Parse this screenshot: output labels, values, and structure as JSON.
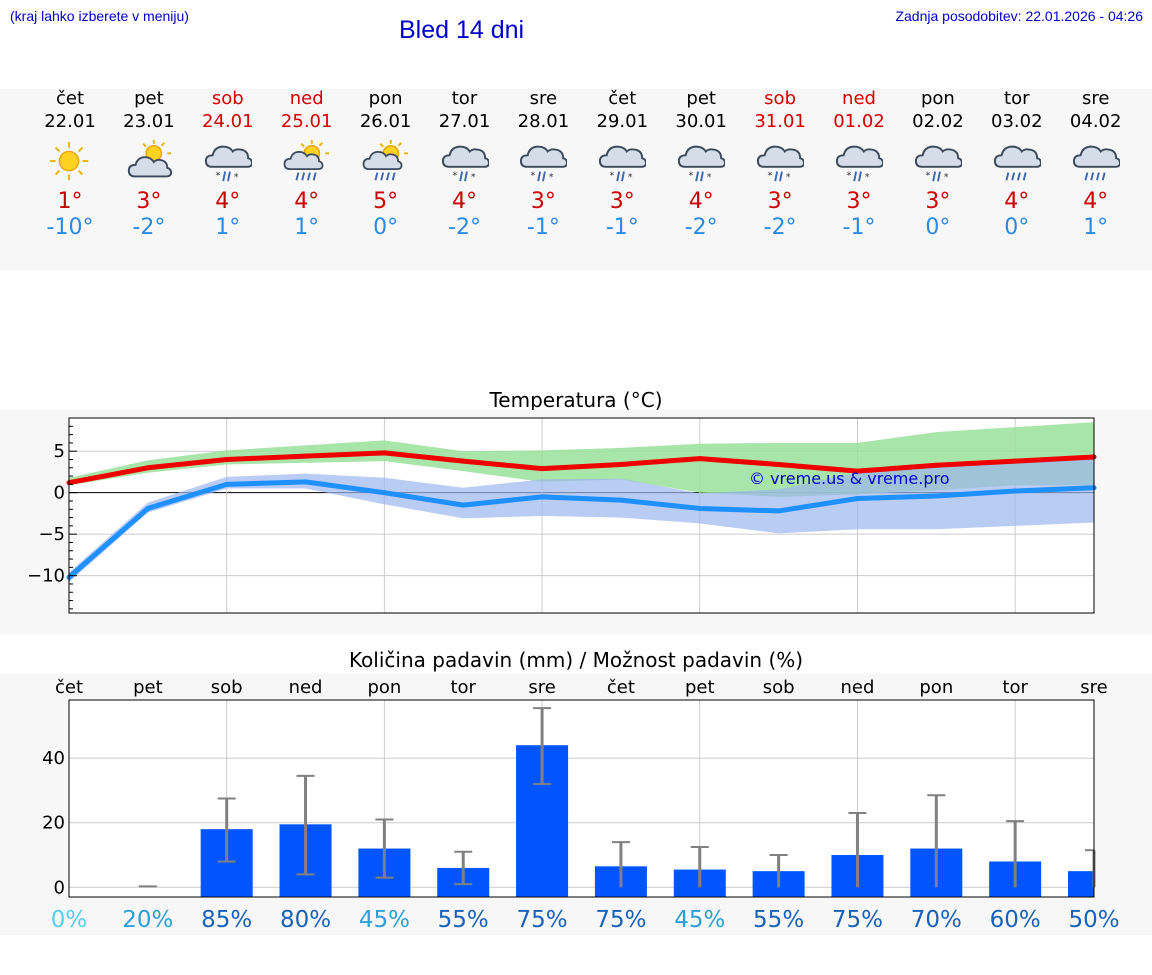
{
  "header": {
    "note": "(kraj lahko izberete v meniju)",
    "title": "Bled 14 dni",
    "updated": "Zadnja posodobitev: 22.01.2026 - 04:26"
  },
  "colors": {
    "link": "#0000cc",
    "weekend": "#d40000",
    "tmax": "#cc0000",
    "tmin": "#2a8ae6",
    "temp_max_line": "#ee0000",
    "temp_min_line": "#1e90ff",
    "band_max": "#99e09a",
    "band_min": "#9bb6f0",
    "bar": "#0055ff",
    "errbar": "#808080"
  },
  "days": [
    {
      "name": "čet",
      "date": "22.01",
      "weekend": false,
      "icon": "sunny-icon",
      "tmax": "1°",
      "tmin": "-10°"
    },
    {
      "name": "pet",
      "date": "23.01",
      "weekend": false,
      "icon": "partly-cloudy-icon",
      "tmax": "3°",
      "tmin": "-2°"
    },
    {
      "name": "sob",
      "date": "24.01",
      "weekend": true,
      "icon": "rain-snow-icon",
      "tmax": "4°",
      "tmin": "1°"
    },
    {
      "name": "ned",
      "date": "25.01",
      "weekend": true,
      "icon": "sun-rain-icon",
      "tmax": "4°",
      "tmin": "1°"
    },
    {
      "name": "pon",
      "date": "26.01",
      "weekend": false,
      "icon": "sun-rain-icon",
      "tmax": "5°",
      "tmin": "0°"
    },
    {
      "name": "tor",
      "date": "27.01",
      "weekend": false,
      "icon": "rain-snow-icon",
      "tmax": "4°",
      "tmin": "-2°"
    },
    {
      "name": "sre",
      "date": "28.01",
      "weekend": false,
      "icon": "rain-snow-icon",
      "tmax": "3°",
      "tmin": "-1°"
    },
    {
      "name": "čet",
      "date": "29.01",
      "weekend": false,
      "icon": "rain-snow-icon",
      "tmax": "3°",
      "tmin": "-1°"
    },
    {
      "name": "pet",
      "date": "30.01",
      "weekend": false,
      "icon": "rain-snow-icon",
      "tmax": "4°",
      "tmin": "-2°"
    },
    {
      "name": "sob",
      "date": "31.01",
      "weekend": true,
      "icon": "rain-snow-icon",
      "tmax": "3°",
      "tmin": "-2°"
    },
    {
      "name": "ned",
      "date": "01.02",
      "weekend": true,
      "icon": "rain-snow-icon",
      "tmax": "3°",
      "tmin": "-1°"
    },
    {
      "name": "pon",
      "date": "02.02",
      "weekend": false,
      "icon": "rain-snow-icon",
      "tmax": "3°",
      "tmin": "0°"
    },
    {
      "name": "tor",
      "date": "03.02",
      "weekend": false,
      "icon": "rain-icon",
      "tmax": "4°",
      "tmin": "0°"
    },
    {
      "name": "sre",
      "date": "04.02",
      "weekend": false,
      "icon": "rain-icon",
      "tmax": "4°",
      "tmin": "1°"
    }
  ],
  "chart_data": [
    {
      "type": "line",
      "title": "Temperatura (°C)",
      "ylabel": "°C",
      "xlabel": "",
      "ylim": [
        -14.5,
        9
      ],
      "yticks": [
        5,
        0,
        -5,
        -10
      ],
      "ytick_labels": [
        "5",
        "0",
        "−5",
        "−10"
      ],
      "watermark": "© vreme.us & vreme.pro",
      "x": [
        0,
        1,
        2,
        3,
        4,
        5,
        6,
        7,
        8,
        9,
        10,
        11,
        12,
        13
      ],
      "series": [
        {
          "name": "max",
          "values": [
            1.2,
            3.0,
            4.0,
            4.4,
            4.8,
            3.8,
            2.9,
            3.4,
            4.1,
            3.4,
            2.6,
            3.3,
            3.8,
            4.3
          ]
        },
        {
          "name": "min",
          "values": [
            -10.2,
            -1.9,
            1.0,
            1.3,
            0.0,
            -1.5,
            -0.5,
            -0.9,
            -1.9,
            -2.2,
            -0.7,
            -0.4,
            0.2,
            0.6
          ]
        }
      ],
      "bands": [
        {
          "name": "max-range",
          "low": [
            0.9,
            2.4,
            3.4,
            3.6,
            3.8,
            2.6,
            1.3,
            1.6,
            0.0,
            -0.5,
            -0.2,
            0.3,
            0.9,
            0.9
          ],
          "high": [
            1.8,
            3.9,
            5.1,
            5.7,
            6.3,
            5.0,
            5.1,
            5.4,
            5.9,
            6.0,
            6.0,
            7.3,
            7.9,
            8.5
          ]
        },
        {
          "name": "min-range",
          "low": [
            -10.8,
            -2.4,
            0.5,
            0.5,
            -1.4,
            -3.1,
            -2.8,
            -3.0,
            -3.7,
            -4.9,
            -4.4,
            -4.4,
            -4.0,
            -3.6
          ],
          "high": [
            -9.6,
            -1.2,
            1.9,
            2.3,
            1.8,
            0.6,
            1.6,
            1.7,
            -0.1,
            0.4,
            2.4,
            3.0,
            3.8,
            4.3
          ]
        }
      ]
    },
    {
      "type": "bar",
      "title": "Količina padavin (mm) / Možnost padavin (%)",
      "categories": [
        "čet",
        "pet",
        "sob",
        "ned",
        "pon",
        "tor",
        "sre",
        "čet",
        "pet",
        "sob",
        "ned",
        "pon",
        "tor",
        "sre"
      ],
      "ylim": [
        -3,
        58
      ],
      "yticks": [
        40,
        20,
        0
      ],
      "values": [
        0,
        0,
        18,
        19.5,
        12,
        6,
        44,
        6.5,
        5.5,
        5,
        10,
        12,
        8,
        5
      ],
      "error_low": [
        0,
        0,
        8,
        4,
        3,
        1,
        32,
        0,
        0,
        0,
        0,
        0,
        0,
        0
      ],
      "error_high": [
        0,
        0.3,
        27.5,
        34.5,
        21,
        11,
        55.5,
        14,
        12.5,
        10,
        23,
        28.5,
        20.5,
        11.5
      ],
      "probability": [
        "0%",
        "20%",
        "85%",
        "80%",
        "45%",
        "55%",
        "75%",
        "75%",
        "45%",
        "55%",
        "75%",
        "70%",
        "60%",
        "50%"
      ],
      "probability_colors": [
        "#5ad0e8",
        "#2f9fd8",
        "#1a62b8",
        "#1a62b8",
        "#2f9fd8",
        "#1a62b8",
        "#1a62b8",
        "#1a62b8",
        "#2f9fd8",
        "#1a62b8",
        "#1a62b8",
        "#1a62b8",
        "#1a62b8",
        "#1a62b8"
      ]
    }
  ]
}
